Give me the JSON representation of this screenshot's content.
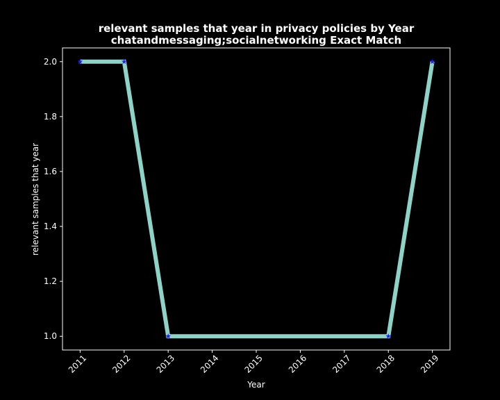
{
  "chart_data": {
    "type": "line",
    "title": "relevant samples that year in privacy policies by Year",
    "subtitle": "chatandmessaging;socialnetworking Exact Match",
    "xlabel": "Year",
    "ylabel": "relevant samples that year",
    "x": [
      2011,
      2012,
      2013,
      2018,
      2019
    ],
    "y": [
      2.0,
      2.0,
      1.0,
      1.0,
      2.0
    ],
    "x_ticks": [
      "2011",
      "2012",
      "2013",
      "2014",
      "2015",
      "2016",
      "2017",
      "2018",
      "2019"
    ],
    "y_ticks": [
      "1.0",
      "1.2",
      "1.4",
      "1.6",
      "1.8",
      "2.0"
    ],
    "xlim": [
      2010.6,
      2019.4
    ],
    "ylim": [
      0.95,
      2.05
    ],
    "grid": false,
    "legend": "none",
    "colors": {
      "background": "#000000",
      "line": "#8dd3c7",
      "marker": "#1f1fff",
      "text": "#ffffff",
      "axes": "#ffffff"
    }
  }
}
